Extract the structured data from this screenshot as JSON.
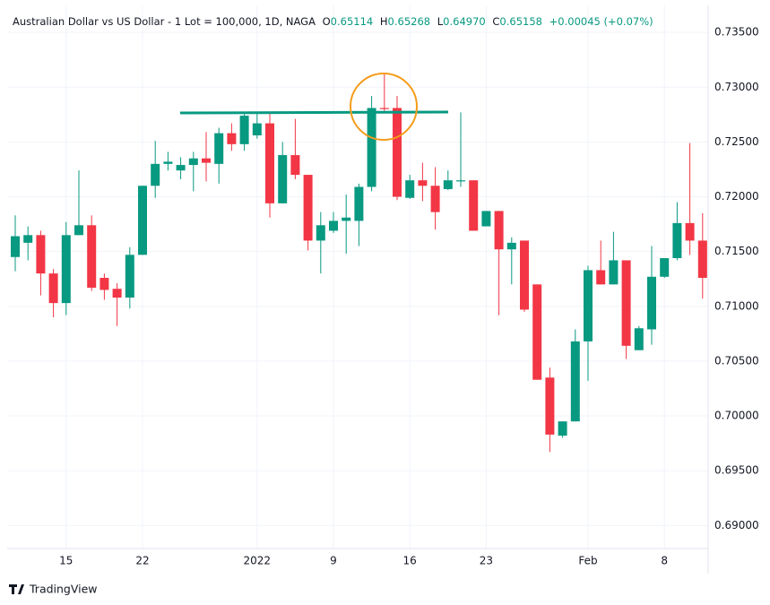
{
  "header": {
    "title": "Australian Dollar vs US Dollar - 1 Lot = 100,000, 1D, NAGA",
    "open_label": "O",
    "open": "0.65114",
    "high_label": "H",
    "high": "0.65268",
    "low_label": "L",
    "low": "0.64970",
    "close_label": "C",
    "close": "0.65158",
    "change": "+0.00045 (+0.07%)"
  },
  "chart_data": {
    "type": "candlestick",
    "categories": [
      null,
      null,
      null,
      null,
      "15",
      null,
      null,
      null,
      null,
      null,
      "22",
      null,
      null,
      null,
      null,
      null,
      null,
      null,
      null,
      "2022",
      null,
      null,
      null,
      null,
      null,
      "9",
      null,
      null,
      null,
      null,
      null,
      "16",
      null,
      null,
      null,
      null,
      null,
      "23",
      null,
      null,
      null,
      null,
      null,
      null,
      null,
      "Feb",
      null,
      null,
      null,
      null,
      null,
      "8",
      null,
      null,
      null
    ],
    "open": [
      0.7145,
      0.7158,
      0.7165,
      0.713,
      0.7103,
      0.7165,
      0.7174,
      0.7126,
      0.7116,
      0.7108,
      0.7147,
      0.721,
      0.723,
      0.7224,
      0.7229,
      0.7235,
      0.723,
      0.7258,
      0.7248,
      0.7256,
      0.7267,
      0.7194,
      0.7238,
      0.722,
      0.716,
      0.7169,
      0.7178,
      0.7178,
      0.7209,
      0.7281,
      0.7281,
      0.7199,
      0.7215,
      0.721,
      0.7207,
      0.7214,
      0.7215,
      0.7173,
      0.7187,
      0.7152,
      0.716,
      0.712,
      0.7035,
      0.6982,
      0.6995,
      0.7068,
      0.7133,
      0.712,
      0.7142,
      0.706,
      0.7079,
      0.7127,
      0.7144,
      0.7176,
      0.716
    ],
    "high": [
      0.7183,
      0.7173,
      0.7169,
      0.7134,
      0.7177,
      0.7224,
      0.7183,
      0.713,
      0.7121,
      0.7154,
      0.721,
      0.7251,
      0.7241,
      0.7236,
      0.7241,
      0.7259,
      0.7263,
      0.7267,
      0.7277,
      0.7276,
      0.7277,
      0.725,
      0.7271,
      0.722,
      0.7186,
      0.7186,
      0.7202,
      0.7212,
      0.7292,
      0.7312,
      0.7292,
      0.722,
      0.7231,
      0.7227,
      0.7224,
      0.7277,
      0.7215,
      0.7187,
      0.7187,
      0.7163,
      0.716,
      0.712,
      0.7044,
      0.6995,
      0.7079,
      0.7137,
      0.716,
      0.7168,
      0.7142,
      0.7082,
      0.7155,
      0.7144,
      0.7195,
      0.7249,
      0.7185
    ],
    "low": [
      0.7132,
      0.7142,
      0.711,
      0.709,
      0.7092,
      0.7165,
      0.7114,
      0.7106,
      0.7082,
      0.7098,
      0.7147,
      0.7199,
      0.7224,
      0.7216,
      0.7205,
      0.7214,
      0.7212,
      0.7242,
      0.7242,
      0.7253,
      0.7181,
      0.7194,
      0.7216,
      0.7151,
      0.713,
      0.7167,
      0.7148,
      0.7155,
      0.7205,
      0.7277,
      0.7197,
      0.7198,
      0.7196,
      0.717,
      0.7206,
      0.7209,
      0.7169,
      0.7173,
      0.7092,
      0.712,
      0.7095,
      0.7033,
      0.6967,
      0.698,
      0.6995,
      0.7032,
      0.712,
      0.712,
      0.7052,
      0.706,
      0.7065,
      0.7126,
      0.7142,
      0.7147,
      0.7107
    ],
    "close": [
      0.7164,
      0.7165,
      0.713,
      0.7103,
      0.7165,
      0.7174,
      0.7117,
      0.7115,
      0.7108,
      0.7147,
      0.721,
      0.723,
      0.7232,
      0.7229,
      0.7235,
      0.7231,
      0.7258,
      0.7248,
      0.7274,
      0.7267,
      0.7194,
      0.7238,
      0.722,
      0.716,
      0.7174,
      0.7178,
      0.7181,
      0.7209,
      0.7281,
      0.728,
      0.72,
      0.7215,
      0.721,
      0.7186,
      0.7215,
      0.7215,
      0.7169,
      0.7187,
      0.7152,
      0.7158,
      0.7097,
      0.7033,
      0.6983,
      0.6995,
      0.7068,
      0.7133,
      0.712,
      0.7142,
      0.7064,
      0.708,
      0.7127,
      0.7144,
      0.7176,
      0.716,
      0.7126
    ],
    "up_color": "#089981",
    "down_color": "#f23645",
    "ylim": [
      0.6879,
      0.7373
    ],
    "yticks": [
      {
        "value": 0.69,
        "label": "0.69000"
      },
      {
        "value": 0.695,
        "label": "0.69500"
      },
      {
        "value": 0.7,
        "label": "0.70000"
      },
      {
        "value": 0.705,
        "label": "0.70500"
      },
      {
        "value": 0.71,
        "label": "0.71000"
      },
      {
        "value": 0.715,
        "label": "0.71500"
      },
      {
        "value": 0.72,
        "label": "0.72000"
      },
      {
        "value": 0.725,
        "label": "0.72500"
      },
      {
        "value": 0.73,
        "label": "0.73000"
      },
      {
        "value": 0.735,
        "label": "0.73500"
      }
    ],
    "grid": true
  },
  "footer": {
    "brand": "TradingView"
  }
}
